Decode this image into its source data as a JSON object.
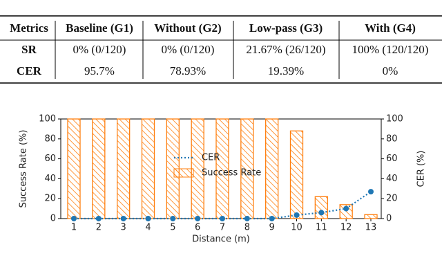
{
  "table": {
    "header": [
      "Metrics",
      "Baseline (G1)",
      "Without (G2)",
      "Low-pass (G3)",
      "With (G4)"
    ],
    "rows": [
      [
        "SR",
        "0% (0/120)",
        "0% (0/120)",
        "21.67% (26/120)",
        "100% (120/120)"
      ],
      [
        "CER",
        "95.7%",
        "78.93%",
        "19.39%",
        "0%"
      ]
    ]
  },
  "chart_data": {
    "type": "bar",
    "xlabel": "Distance (m)",
    "ylabel": "Success Rate (%)",
    "y2label": "CER (%)",
    "categories": [
      "1",
      "2",
      "3",
      "4",
      "5",
      "6",
      "7",
      "8",
      "9",
      "10",
      "11",
      "12",
      "13"
    ],
    "series": [
      {
        "name": "Success Rate",
        "type": "bar",
        "color": "#ff7f0e",
        "values": [
          100,
          100,
          100,
          100,
          100,
          100,
          100,
          100,
          100,
          88,
          22,
          14,
          4
        ]
      },
      {
        "name": "CER",
        "type": "line",
        "axis": "y2",
        "color": "#1f77b4",
        "values": [
          0,
          0,
          0,
          0,
          0,
          0,
          0,
          0,
          0,
          3.5,
          6,
          10,
          27
        ]
      }
    ],
    "ylim": [
      0,
      100
    ],
    "yticks": [
      0,
      20,
      40,
      60,
      80,
      100
    ],
    "y2lim": [
      0,
      100
    ],
    "y2ticks": [
      0,
      20,
      40,
      60,
      80,
      100
    ],
    "legend": "center"
  }
}
